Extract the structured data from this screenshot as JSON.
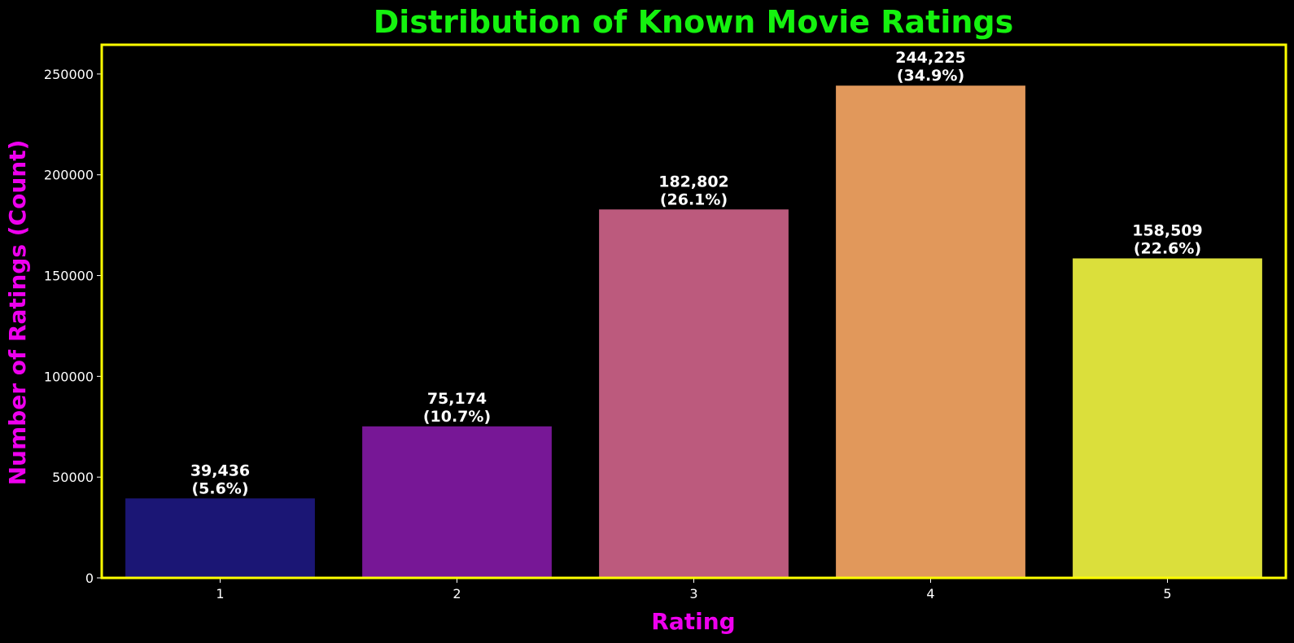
{
  "chart_data": {
    "type": "bar",
    "title": "Distribution of Known Movie Ratings",
    "xlabel": "Rating",
    "ylabel": "Number of Ratings (Count)",
    "categories": [
      "1",
      "2",
      "3",
      "4",
      "5"
    ],
    "values": [
      39436,
      75174,
      182802,
      244225,
      158509
    ],
    "value_labels": [
      "39,436",
      "75,174",
      "182,802",
      "244,225",
      "158,509"
    ],
    "percent_labels": [
      "(5.6%)",
      "(10.7%)",
      "(26.1%)",
      "(34.9%)",
      "(22.6%)"
    ],
    "bar_colors": [
      "#1b1675",
      "#771796",
      "#bc5a7d",
      "#e1985b",
      "#dbdf3b"
    ],
    "yticks": [
      0,
      50000,
      100000,
      150000,
      200000,
      250000
    ],
    "ylim": [
      0,
      264500
    ],
    "grid": false,
    "legend": "none"
  },
  "colors": {
    "background": "#000000",
    "title": "#15f20f",
    "axis_label": "#ee00ee",
    "frame": "#ffff00",
    "tick_text": "#ffffff"
  }
}
